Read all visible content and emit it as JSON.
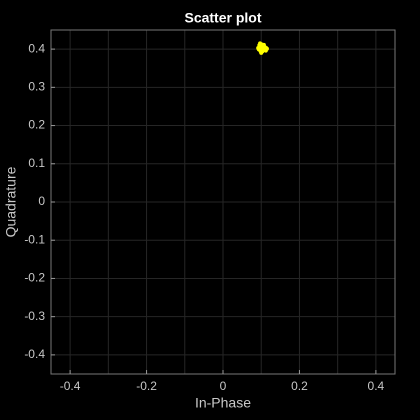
{
  "chart_data": {
    "type": "scatter",
    "title": "Scatter plot",
    "x_label": "In-Phase",
    "y_label": "Quadrature",
    "series": [
      {
        "color": "#ffff00",
        "x": [
          0.1,
          0.095,
          0.105,
          0.11,
          0.098,
          0.102,
          0.108,
          0.092,
          0.115,
          0.1,
          0.097,
          0.104,
          0.112,
          0.094,
          0.106,
          0.1,
          0.099,
          0.103,
          0.109,
          0.096,
          0.101,
          0.107,
          0.093,
          0.113,
          0.1
        ],
        "values": [
          0.405,
          0.41,
          0.4,
          0.402,
          0.395,
          0.412,
          0.398,
          0.403,
          0.401,
          0.392,
          0.415,
          0.407,
          0.396,
          0.399,
          0.409,
          0.4,
          0.404,
          0.394,
          0.406,
          0.408,
          0.397,
          0.411,
          0.401,
          0.403,
          0.39
        ]
      }
    ],
    "xlim": [
      -0.45,
      0.45
    ],
    "ylim": [
      -0.45,
      0.45
    ],
    "xticks": [
      -0.4,
      -0.2,
      0,
      0.2,
      0.4
    ],
    "yticks": [
      -0.4,
      -0.3,
      -0.2,
      -0.1,
      0,
      0.1,
      0.2,
      0.3,
      0.4
    ],
    "xgrid": [
      -0.4,
      -0.3,
      -0.2,
      -0.1,
      0,
      0.1,
      0.2,
      0.3,
      0.4
    ],
    "grid": true
  }
}
